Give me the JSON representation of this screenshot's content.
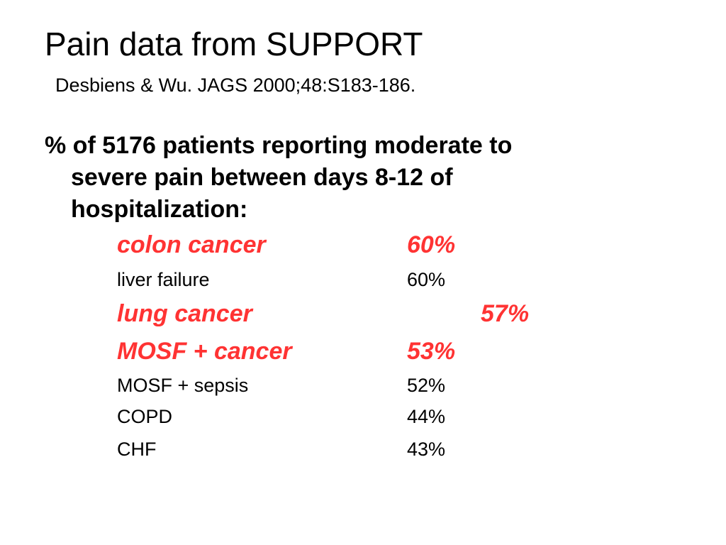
{
  "slide": {
    "title": "Pain data from SUPPORT",
    "subtitle": "Desbiens & Wu. JAGS 2000;48:S183-186.",
    "intro_lines": [
      "% of 5176 patients reporting moderate to",
      "severe pain between days 8-12 of",
      "hospitalization:"
    ],
    "highlight_color": "#ff3333",
    "rows": [
      {
        "condition": "colon cancer",
        "percent": "60%",
        "highlighted": true
      },
      {
        "condition": "liver failure",
        "percent": "60%",
        "highlighted": false
      },
      {
        "condition": "lung cancer",
        "percent": "57%",
        "highlighted": true
      },
      {
        "condition": "MOSF + cancer",
        "percent": "53%",
        "highlighted": true
      },
      {
        "condition": "MOSF + sepsis",
        "percent": "52%",
        "highlighted": false
      },
      {
        "condition": "COPD",
        "percent": "44%",
        "highlighted": false
      },
      {
        "condition": "CHF",
        "percent": "43%",
        "highlighted": false
      }
    ]
  }
}
